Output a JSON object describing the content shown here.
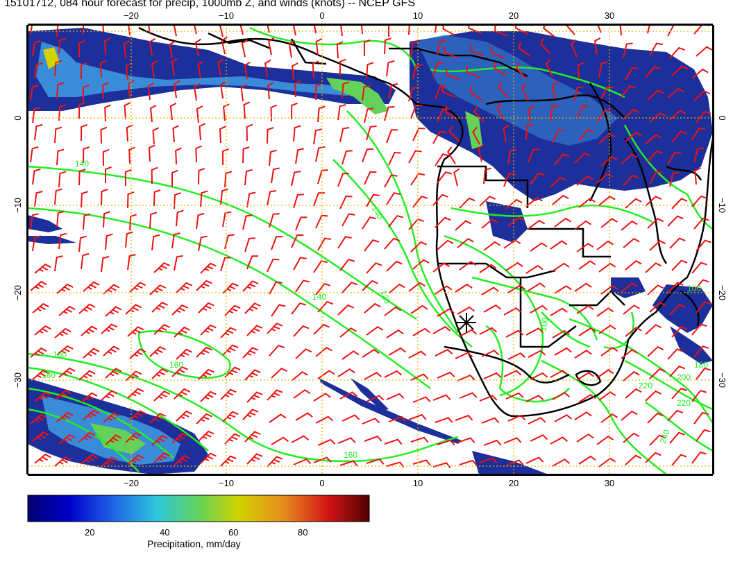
{
  "title": "15101712, 084 hour forecast for precip, 1000mb Z, and winds (knots) -- NCEP GFS",
  "axes": {
    "lon_ticks": [
      "−20",
      "−10",
      "0",
      "10",
      "20",
      "30"
    ],
    "lat_ticks": [
      "0",
      "−10",
      "−20",
      "−30"
    ]
  },
  "contour_labels": [
    "140",
    "140",
    "140",
    "160",
    "160",
    "160",
    "180",
    "180",
    "100",
    "100",
    "220",
    "220",
    "240",
    "200",
    "120"
  ],
  "colorbar": {
    "label": "Precipitation, mm/day",
    "ticks": [
      "20",
      "40",
      "60",
      "80"
    ],
    "range": [
      0,
      100
    ]
  },
  "colors": {
    "precip_low": "#1d2f9a",
    "precip_mid": "#3a8cd8",
    "contour": "#22ee22",
    "wind_barb": "#ee1111",
    "grid": "#e8b400",
    "coast": "#000000"
  }
}
